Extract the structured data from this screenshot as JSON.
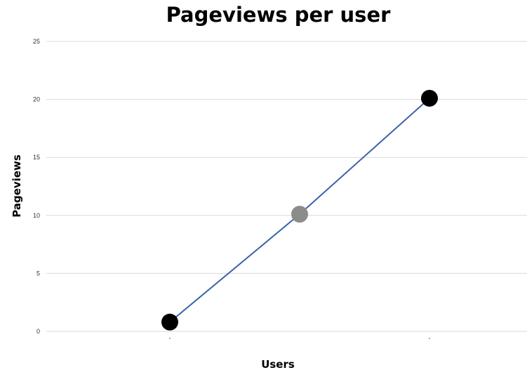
{
  "chart_data": {
    "type": "line",
    "title": "Pageviews per user",
    "xlabel": "Users",
    "ylabel": "Pageviews",
    "ylim": [
      0,
      25
    ],
    "yticks": [
      0,
      5,
      10,
      15,
      20,
      25
    ],
    "grid": true,
    "series": [
      {
        "color": "#3a63a8",
        "points": [
          {
            "x": 1,
            "y": 0.8,
            "marker_color": "#000000"
          },
          {
            "x": 2,
            "y": 10.1,
            "marker_color": "#8c8c8c"
          },
          {
            "x": 3,
            "y": 20.1,
            "marker_color": "#000000"
          }
        ]
      }
    ]
  }
}
